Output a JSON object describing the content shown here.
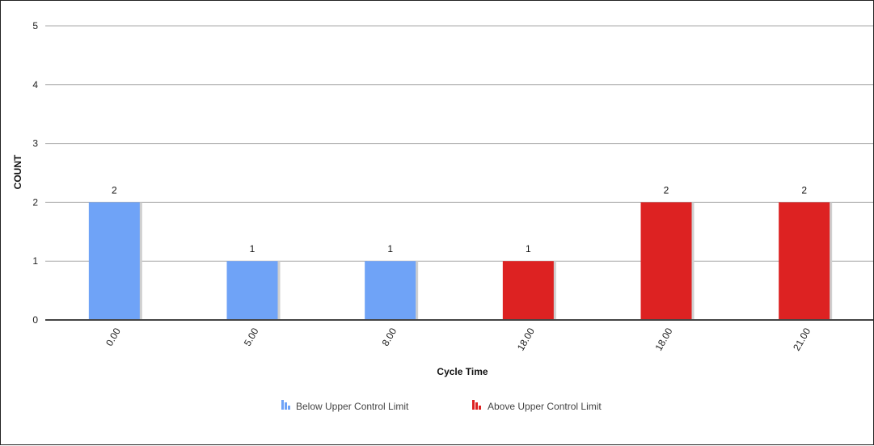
{
  "chart_data": {
    "type": "bar",
    "categories": [
      "0.00",
      "5.00",
      "8.00",
      "18.00",
      "18.00",
      "21.00"
    ],
    "values": [
      2,
      1,
      1,
      1,
      2,
      2
    ],
    "bar_series": [
      "Below Upper Control Limit",
      "Below Upper Control Limit",
      "Below Upper Control Limit",
      "Above Upper Control Limit",
      "Above Upper Control Limit",
      "Above Upper Control Limit"
    ],
    "series": [
      {
        "name": "Below Upper Control Limit",
        "color": "#6fa3f7"
      },
      {
        "name": "Above Upper Control Limit",
        "color": "#dd2222"
      }
    ],
    "xlabel": "Cycle Time",
    "ylabel": "COUNT",
    "ylim": [
      0,
      5
    ],
    "yticks": [
      0,
      1,
      2,
      3,
      4,
      5
    ],
    "grid": true,
    "legend_position": "bottom-center",
    "data_labels": true
  }
}
